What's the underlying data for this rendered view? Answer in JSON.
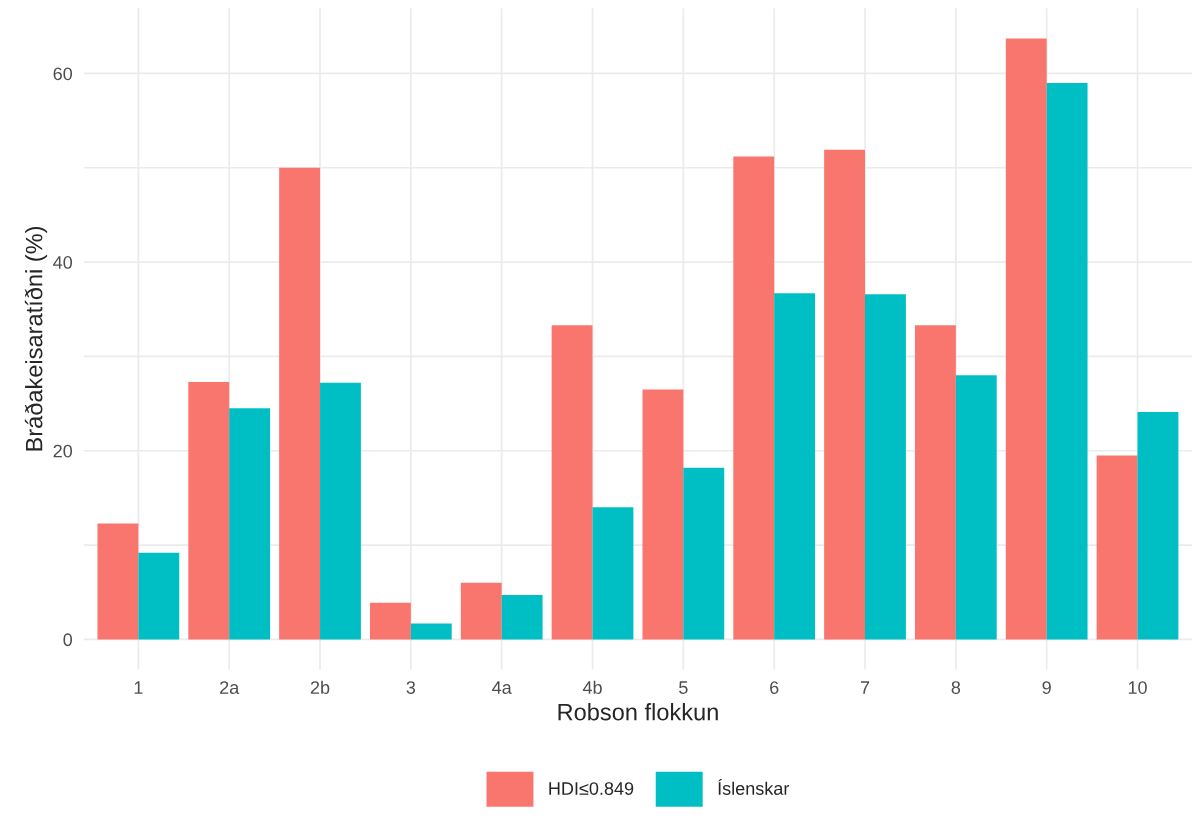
{
  "chart_data": {
    "type": "bar",
    "xlabel": "Robson flokkun",
    "ylabel": "Bráðakeisaratíðni (%)",
    "categories": [
      "1",
      "2a",
      "2b",
      "3",
      "4a",
      "4b",
      "5",
      "6",
      "7",
      "8",
      "9",
      "10"
    ],
    "series": [
      {
        "name": "HDI≤0.849",
        "color": "#f8766d",
        "values": [
          12.3,
          27.3,
          50.0,
          3.9,
          6.0,
          33.3,
          26.5,
          51.2,
          51.9,
          33.3,
          63.7,
          19.5
        ]
      },
      {
        "name": "Íslenskar",
        "color": "#00bfc4",
        "values": [
          9.2,
          24.5,
          27.2,
          1.7,
          4.7,
          14.0,
          18.2,
          36.7,
          36.6,
          28.0,
          59.0,
          24.1
        ]
      }
    ],
    "ylim": [
      -3.2,
      66.9
    ],
    "yticks": [
      0,
      {
        "value": 10,
        "label": null
      },
      20,
      {
        "value": 30,
        "label": null
      },
      40,
      {
        "value": 50,
        "label": null
      },
      60
    ],
    "grid": true,
    "legend": "bottom"
  }
}
